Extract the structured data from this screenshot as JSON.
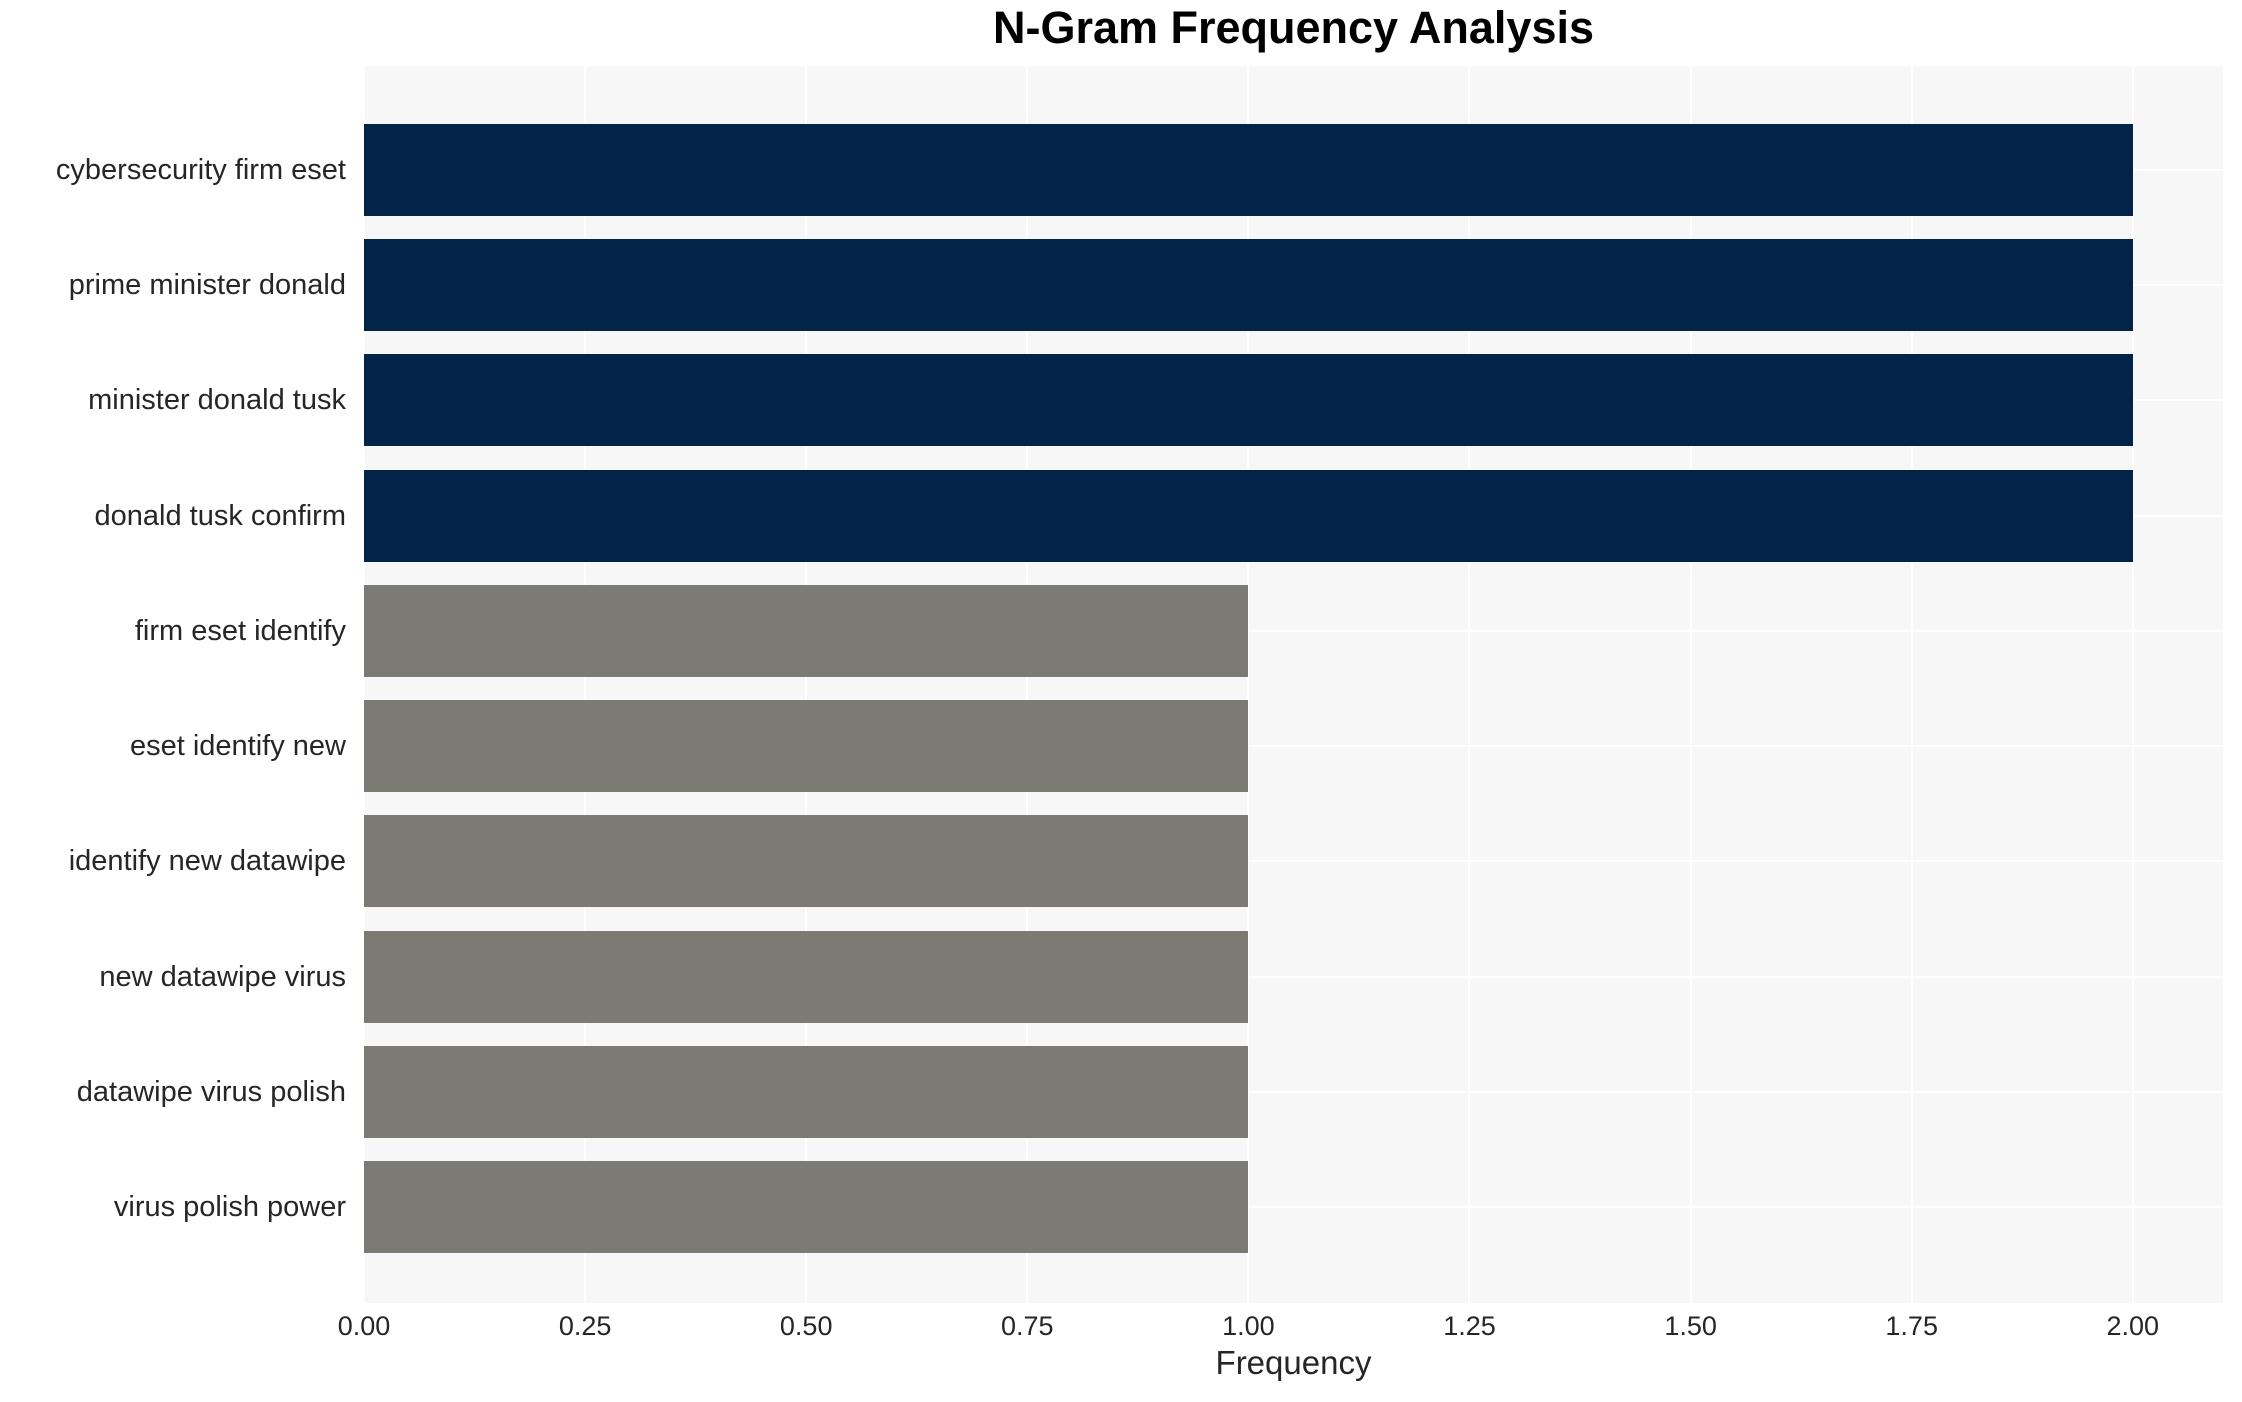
{
  "title": "N-Gram Frequency Analysis",
  "xlabel": "Frequency",
  "colors": {
    "bar_high": "#032449",
    "bar_low": "#7B7A73",
    "plot_background": "#F7F7F7",
    "gridline": "#FFFFFF",
    "tick_text": "#262626",
    "title_text": "#000000",
    "figure_background": "#FFFFFF"
  },
  "chart_data": {
    "type": "bar",
    "orientation": "horizontal",
    "title": "N-Gram Frequency Analysis",
    "xlabel": "Frequency",
    "ylabel": "",
    "categories": [
      "cybersecurity firm eset",
      "prime minister donald",
      "minister donald tusk",
      "donald tusk confirm",
      "firm eset identify",
      "eset identify new",
      "identify new datawipe",
      "new datawipe virus",
      "datawipe virus polish",
      "virus polish power"
    ],
    "values": [
      2,
      2,
      2,
      2,
      1,
      1,
      1,
      1,
      1,
      1
    ],
    "bar_colors": [
      "#032449",
      "#032449",
      "#032449",
      "#032449",
      "#7B7A73",
      "#7B7A73",
      "#7B7A73",
      "#7B7A73",
      "#7B7A73",
      "#7B7A73"
    ],
    "xlim": [
      0,
      2.102
    ],
    "xticks": [
      {
        "value": 0.0,
        "label": "0.00"
      },
      {
        "value": 0.25,
        "label": "0.25"
      },
      {
        "value": 0.5,
        "label": "0.50"
      },
      {
        "value": 0.75,
        "label": "0.75"
      },
      {
        "value": 1.0,
        "label": "1.00"
      },
      {
        "value": 1.25,
        "label": "1.25"
      },
      {
        "value": 1.5,
        "label": "1.50"
      },
      {
        "value": 1.75,
        "label": "1.75"
      },
      {
        "value": 2.0,
        "label": "2.00"
      }
    ],
    "grid": true,
    "legend": false
  }
}
